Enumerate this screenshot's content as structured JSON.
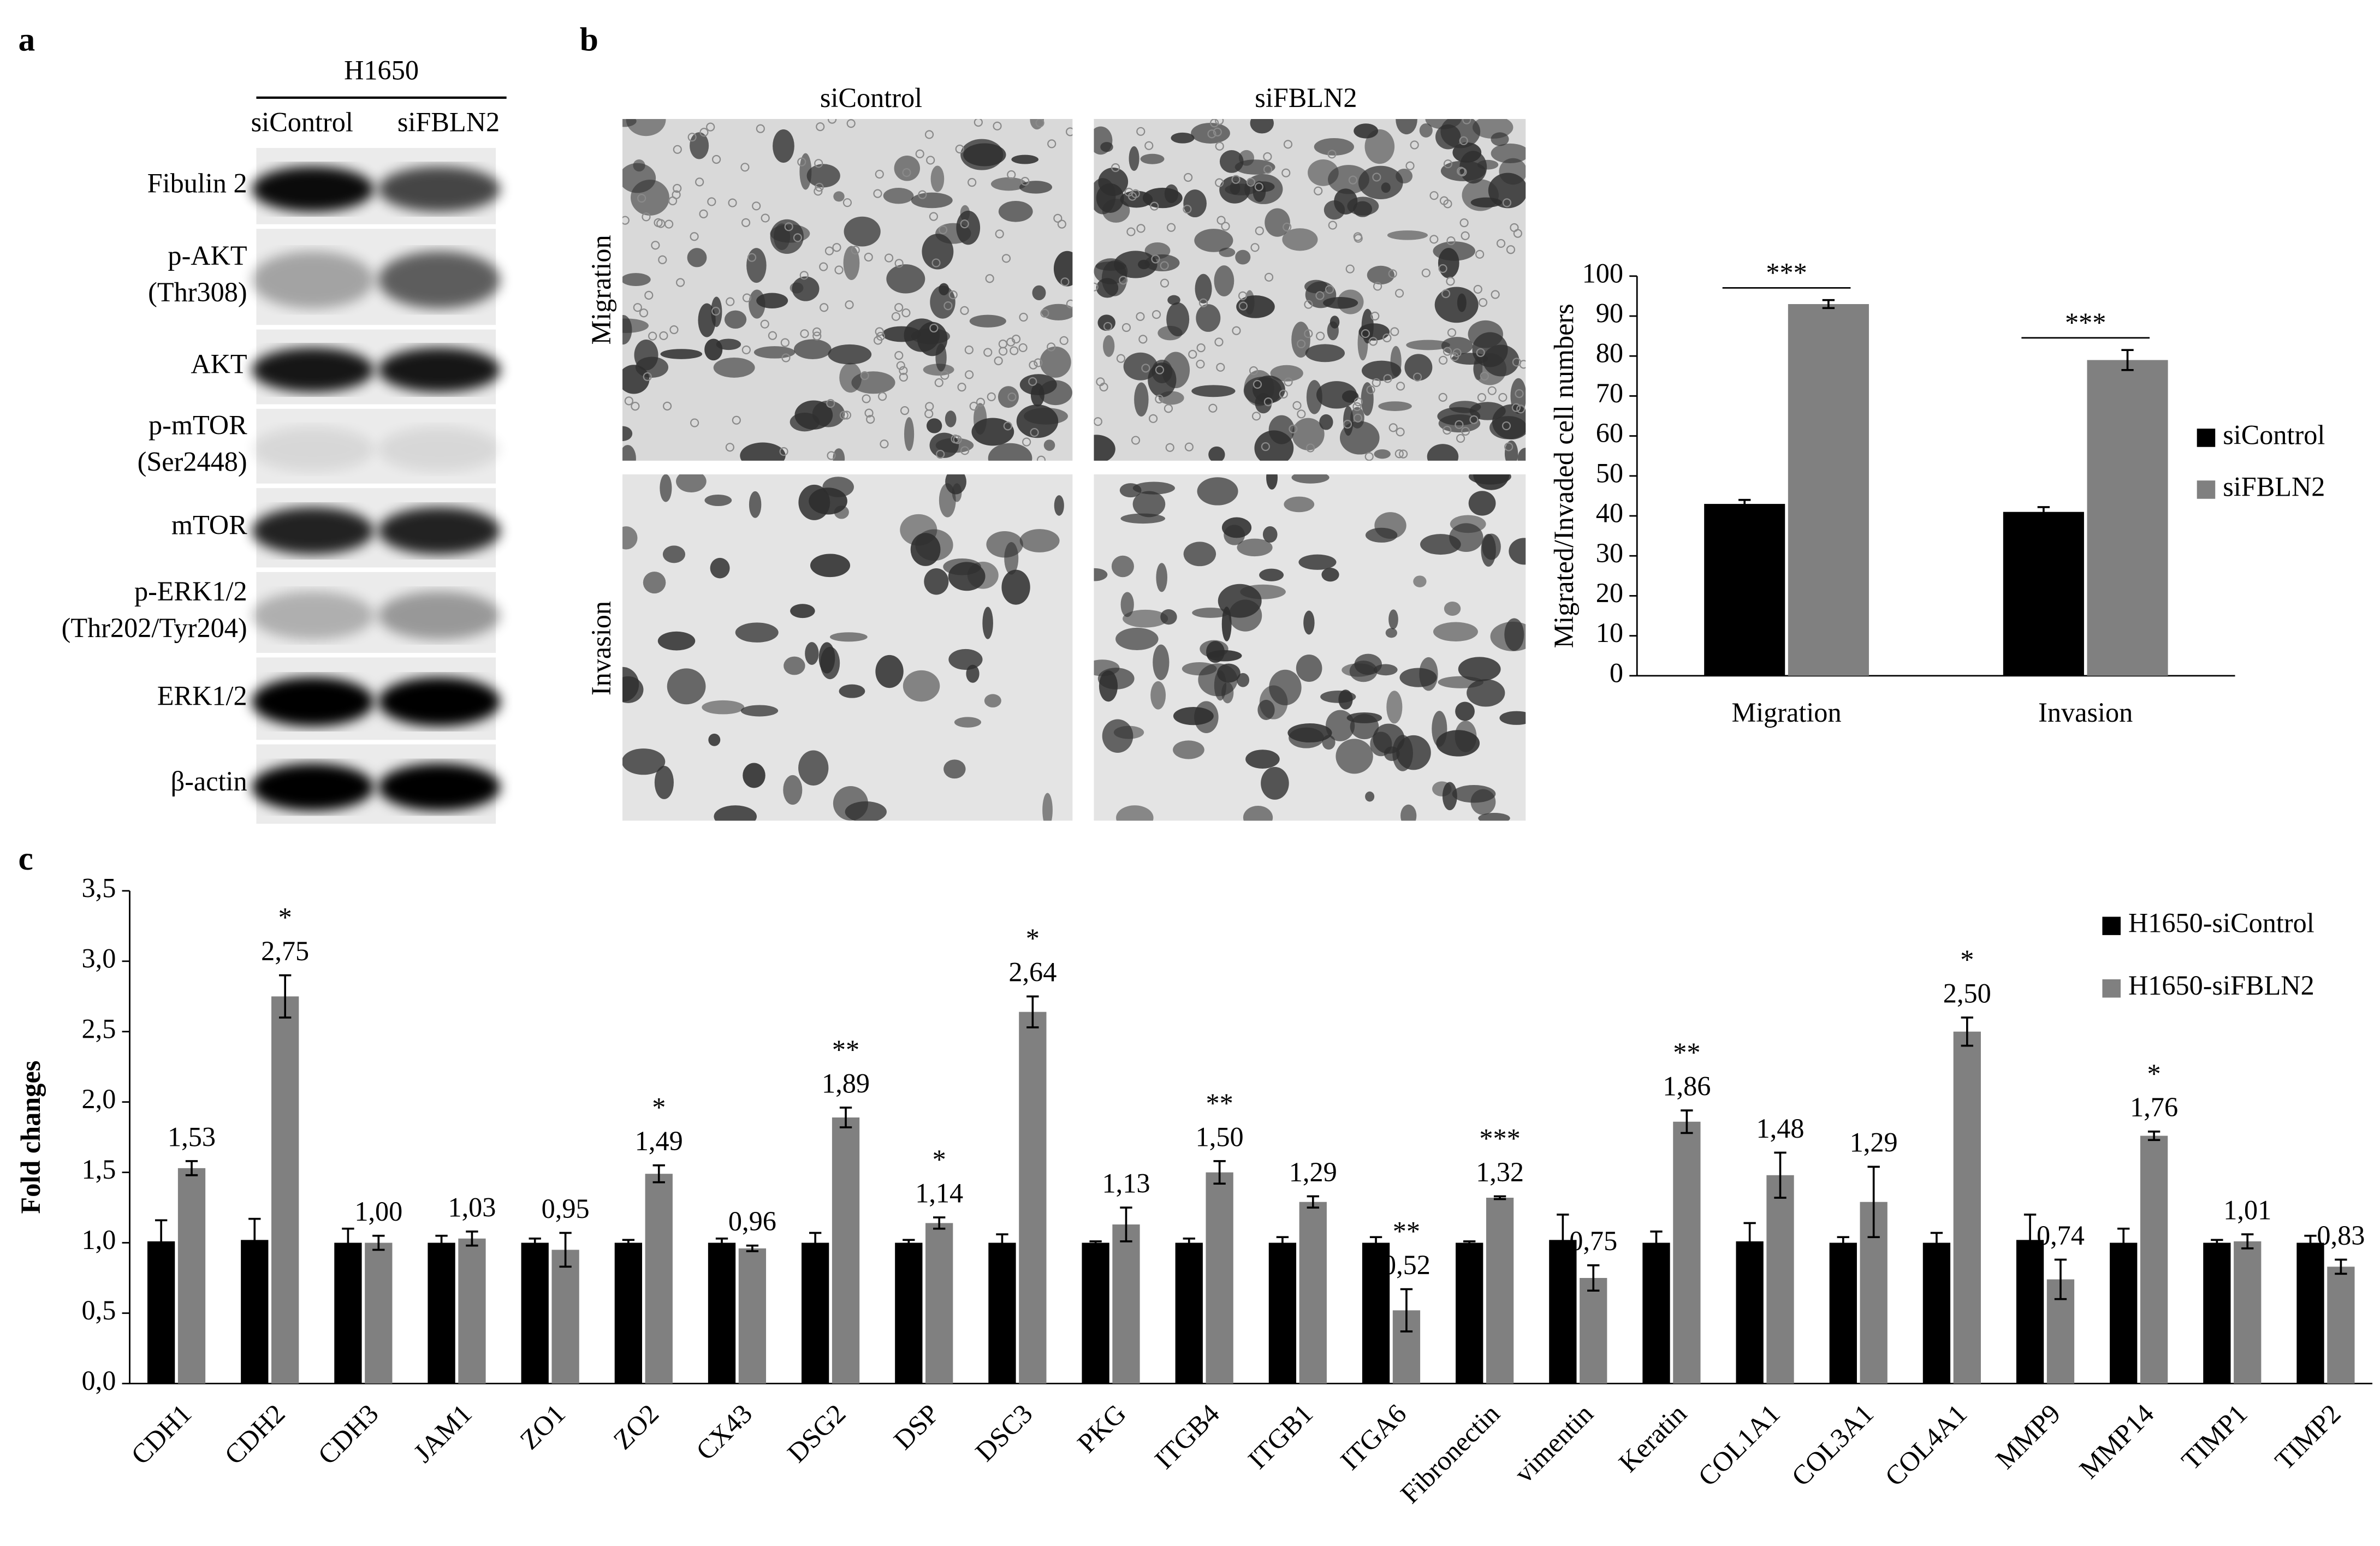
{
  "panel_labels": [
    "a",
    "b",
    "c"
  ],
  "blot": {
    "cell_line": "H1650",
    "lanes": [
      "siControl",
      "siFBLN2"
    ],
    "bands": [
      [
        "Fibulin 2"
      ],
      [
        "p-AKT",
        "(Thr308)"
      ],
      [
        "AKT"
      ],
      [
        "p-mTOR",
        "(Ser2448)"
      ],
      [
        "mTOR"
      ],
      [
        "p-ERK1/2",
        "(Thr202/Tyr204)"
      ],
      [
        "ERK1/2"
      ],
      [
        "β-actin"
      ]
    ]
  },
  "micrographs": {
    "columns": [
      "siControl",
      "siFBLN2"
    ],
    "rows": [
      "Migration",
      "Invasion"
    ]
  },
  "chart_data": [
    {
      "type": "bar",
      "y_label": "Migrated/Invaded cell numbers",
      "categories": [
        "Migration",
        "Invasion"
      ],
      "series": [
        {
          "name": "siControl",
          "color": "#000000",
          "values": [
            43,
            41
          ],
          "errors": [
            1,
            1.2
          ]
        },
        {
          "name": "siFBLN2",
          "color": "#808080",
          "values": [
            93,
            79
          ],
          "errors": [
            1,
            2.5
          ]
        }
      ],
      "significance": [
        "***",
        "***"
      ],
      "ylim": [
        0,
        100
      ],
      "yticks": [
        0,
        10,
        20,
        30,
        40,
        50,
        60,
        70,
        80,
        90,
        100
      ],
      "legend": "right"
    },
    {
      "type": "bar",
      "y_label": "Fold changes",
      "categories": [
        "CDH1",
        "CDH2",
        "CDH3",
        "JAM1",
        "ZO1",
        "ZO2",
        "CX43",
        "DSG2",
        "DSP",
        "DSC3",
        "PKG",
        "ITGB4",
        "ITGB1",
        "ITGA6",
        "Fibronectin",
        "vimentin",
        "Keratin",
        "COL1A1",
        "COL3A1",
        "COL4A1",
        "MMP9",
        "MMP14",
        "TIMP1",
        "TIMP2"
      ],
      "series": [
        {
          "name": "H1650-siControl",
          "color": "#000000",
          "values": [
            1.01,
            1.02,
            1.0,
            1.0,
            1.0,
            1.0,
            1.0,
            1.0,
            1.0,
            1.0,
            1.0,
            1.0,
            1.0,
            1.0,
            1.0,
            1.02,
            1.0,
            1.01,
            1.0,
            1.0,
            1.02,
            1.0,
            1.0,
            1.0
          ],
          "errors": [
            0.15,
            0.15,
            0.1,
            0.05,
            0.03,
            0.02,
            0.03,
            0.07,
            0.02,
            0.06,
            0.01,
            0.03,
            0.04,
            0.04,
            0.01,
            0.18,
            0.08,
            0.13,
            0.04,
            0.07,
            0.18,
            0.1,
            0.02,
            0.05
          ]
        },
        {
          "name": "H1650-siFBLN2",
          "color": "#808080",
          "values": [
            1.53,
            2.75,
            1.0,
            1.03,
            0.95,
            1.49,
            0.96,
            1.89,
            1.14,
            2.64,
            1.13,
            1.5,
            1.29,
            0.52,
            1.32,
            0.75,
            1.86,
            1.48,
            1.29,
            2.5,
            0.74,
            1.76,
            1.01,
            0.83
          ],
          "value_labels": [
            "1,53",
            "2,75",
            "1,00",
            "1,03",
            "0,95",
            "1,49",
            "0,96",
            "1,89",
            "1,14",
            "2,64",
            "1,13",
            "1,50",
            "1,29",
            "0,52",
            "1,32",
            "0,75",
            "1,86",
            "1,48",
            "1,29",
            "2,50",
            "0,74",
            "1,76",
            "1,01",
            "0,83"
          ],
          "errors": [
            0.05,
            0.15,
            0.05,
            0.05,
            0.12,
            0.06,
            0.02,
            0.07,
            0.04,
            0.11,
            0.12,
            0.08,
            0.04,
            0.15,
            0.01,
            0.09,
            0.08,
            0.16,
            0.25,
            0.1,
            0.14,
            0.03,
            0.05,
            0.05
          ]
        }
      ],
      "significance": [
        null,
        "*",
        null,
        null,
        null,
        "*",
        null,
        "**",
        "*",
        "*",
        null,
        "**",
        null,
        "**",
        "***",
        null,
        "**",
        null,
        null,
        "*",
        null,
        "*",
        null,
        null
      ],
      "ylim": [
        0,
        3.5
      ],
      "yticks": [
        {
          "value": 0,
          "label": "0,0"
        },
        {
          "value": 0.5,
          "label": "0,5"
        },
        {
          "value": 1,
          "label": "1,0"
        },
        {
          "value": 1.5,
          "label": "1,5"
        },
        {
          "value": 2,
          "label": "2,0"
        },
        {
          "value": 2.5,
          "label": "2,5"
        },
        {
          "value": 3,
          "label": "3,0"
        },
        {
          "value": 3.5,
          "label": "3,5"
        }
      ],
      "legend": "top-right"
    }
  ]
}
